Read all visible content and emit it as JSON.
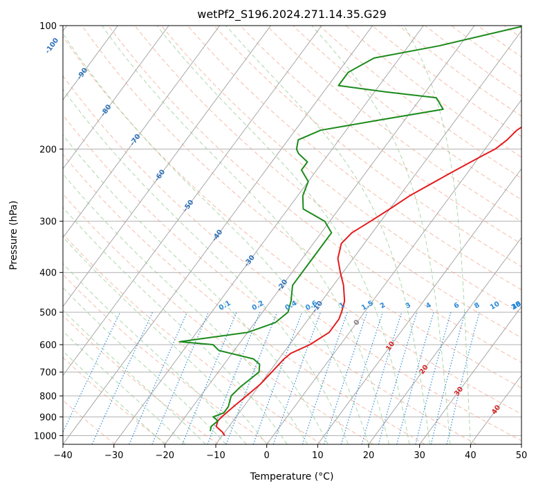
{
  "chart_data": {
    "type": "line",
    "subtype": "skew-T log-P diagram",
    "title": "wetPf2_S196.2024.271.14.35.G29",
    "xlabel": "Temperature (°C)",
    "ylabel": "Pressure (hPa)",
    "xlim": [
      -40,
      50
    ],
    "ylim": [
      1050,
      100
    ],
    "y_scale": "log",
    "grid": true,
    "x_ticks": [
      "−40",
      "−30",
      "−20",
      "−10",
      "0",
      "10",
      "20",
      "30",
      "40",
      "50"
    ],
    "y_ticks": [
      "100",
      "200",
      "300",
      "400",
      "500",
      "600",
      "700",
      "800",
      "900",
      "1000"
    ],
    "colors": {
      "temperature": "#e41a1c",
      "dewpoint": "#1b8a1b",
      "isotherm": "#a6a6a6",
      "dry_adiabat": "#f2a48a",
      "moist_adiabat": "#8fc98f",
      "mixing_ratio": "#2a8ad8",
      "grid": "#b0b0b0",
      "isotherm_label_cold": "#2f72b8",
      "isotherm_label_warm": "#d62728",
      "isotherm_label_zero": "#7f7f7f",
      "mixing_label": "#2a8ad8"
    },
    "isotherm_labels": [
      {
        "text": "-100",
        "value": -100,
        "p": 112
      },
      {
        "text": "-90",
        "value": -90,
        "p": 131
      },
      {
        "text": "-80",
        "value": -80,
        "p": 161
      },
      {
        "text": "-70",
        "value": -70,
        "p": 190
      },
      {
        "text": "-60",
        "value": -60,
        "p": 232
      },
      {
        "text": "-50",
        "value": -50,
        "p": 275
      },
      {
        "text": "-40",
        "value": -40,
        "p": 325
      },
      {
        "text": "-30",
        "value": -30,
        "p": 375
      },
      {
        "text": "-20",
        "value": -20,
        "p": 430
      },
      {
        "text": "-10",
        "value": -10,
        "p": 485
      },
      {
        "text": "0",
        "value": 0,
        "p": 530
      },
      {
        "text": "10",
        "value": 10,
        "p": 605
      },
      {
        "text": "20",
        "value": 20,
        "p": 690
      },
      {
        "text": "30",
        "value": 30,
        "p": 780
      },
      {
        "text": "40",
        "value": 40,
        "p": 865
      }
    ],
    "mixing_ratio_lines": [
      "0.1",
      "0.2",
      "0.4",
      "0.6",
      "1",
      "1.5",
      "2",
      "3",
      "4",
      "6",
      "8",
      "10",
      "13",
      "16",
      "20",
      "25",
      "30",
      "36"
    ],
    "mixing_ratio_label_temps": [
      -22.5,
      -16,
      -9.5,
      -5.5,
      0.5,
      5.5,
      8.5,
      13.5,
      17.5,
      23,
      27,
      30.5,
      35,
      38,
      41.5,
      45,
      48.5,
      51.5
    ],
    "series": [
      {
        "name": "Temperature",
        "points": [
          [
            1000,
            -9.5
          ],
          [
            980,
            -10.5
          ],
          [
            950,
            -12.5
          ],
          [
            920,
            -13
          ],
          [
            900,
            -12.8
          ],
          [
            850,
            -12
          ],
          [
            800,
            -11
          ],
          [
            750,
            -10
          ],
          [
            700,
            -9.5
          ],
          [
            650,
            -9
          ],
          [
            630,
            -8.5
          ],
          [
            600,
            -6
          ],
          [
            560,
            -4
          ],
          [
            520,
            -4
          ],
          [
            500,
            -4.5
          ],
          [
            470,
            -5.5
          ],
          [
            430,
            -8
          ],
          [
            400,
            -10.5
          ],
          [
            370,
            -13
          ],
          [
            340,
            -14.5
          ],
          [
            320,
            -14
          ],
          [
            300,
            -12
          ],
          [
            280,
            -10
          ],
          [
            260,
            -8
          ],
          [
            230,
            -3.5
          ],
          [
            210,
            0
          ],
          [
            200,
            2
          ],
          [
            190,
            3
          ],
          [
            180,
            3.5
          ],
          [
            165,
            6
          ],
          [
            150,
            11
          ],
          [
            140,
            16
          ],
          [
            130,
            20
          ],
          [
            115,
            25
          ],
          [
            100,
            30
          ]
        ]
      },
      {
        "name": "Dewpoint",
        "points": [
          [
            975,
            -13
          ],
          [
            950,
            -13.5
          ],
          [
            920,
            -13
          ],
          [
            900,
            -14.5
          ],
          [
            880,
            -13
          ],
          [
            850,
            -13
          ],
          [
            800,
            -14
          ],
          [
            760,
            -13.5
          ],
          [
            720,
            -12.5
          ],
          [
            700,
            -12
          ],
          [
            670,
            -13
          ],
          [
            650,
            -15
          ],
          [
            620,
            -23
          ],
          [
            600,
            -25
          ],
          [
            590,
            -32
          ],
          [
            580,
            -28
          ],
          [
            560,
            -20
          ],
          [
            530,
            -16
          ],
          [
            500,
            -15
          ],
          [
            470,
            -16
          ],
          [
            430,
            -18
          ],
          [
            400,
            -18
          ],
          [
            370,
            -18
          ],
          [
            340,
            -18
          ],
          [
            320,
            -18
          ],
          [
            300,
            -21
          ],
          [
            280,
            -27
          ],
          [
            260,
            -29
          ],
          [
            240,
            -30
          ],
          [
            225,
            -33
          ],
          [
            215,
            -33
          ],
          [
            205,
            -36
          ],
          [
            200,
            -37
          ],
          [
            190,
            -38
          ],
          [
            180,
            -35
          ],
          [
            170,
            -25
          ],
          [
            160,
            -14
          ],
          [
            150,
            -17
          ],
          [
            145,
            -28
          ],
          [
            140,
            -38
          ],
          [
            130,
            -38
          ],
          [
            120,
            -35
          ],
          [
            112,
            -24
          ],
          [
            100,
            -10
          ]
        ]
      }
    ]
  }
}
